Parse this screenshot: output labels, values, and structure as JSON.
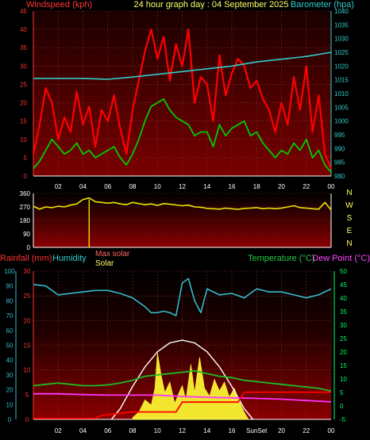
{
  "header": {
    "left_title": "Windspeed (kph)",
    "center_title": "24 hour graph day : 04 September 2025",
    "right_title": "Barometer (hpa)"
  },
  "colors": {
    "wind": "#ff0000",
    "wind_avg": "#00cc00",
    "barometer": "#33cccc",
    "direction": "#e8e800",
    "rain": "#ff0000",
    "humidity": "#33bbcc",
    "temperature": "#22bb22",
    "dewpoint": "#ff33ff",
    "solar": "#ffff33",
    "max_solar": "#ffffff",
    "axis_left_wind": "#ff3333",
    "axis_right_green": "#00ff66",
    "grid": "#7a2a2a"
  },
  "chart_data": [
    {
      "type": "line",
      "name": "wind-barometer",
      "title": "24 hour graph day : 04 September 2025",
      "ylabel": "Windspeed (kph)",
      "y2label": "Barometer (hpa)",
      "x_ticks": [
        "02",
        "04",
        "06",
        "08",
        "10",
        "12",
        "14",
        "16",
        "18",
        "20",
        "22",
        "00"
      ],
      "ylim": [
        0,
        45
      ],
      "y_ticks": [
        0,
        5,
        10,
        15,
        20,
        25,
        30,
        35,
        40,
        45
      ],
      "y2lim": [
        980,
        1040
      ],
      "y2_ticks": [
        980,
        985,
        990,
        995,
        1000,
        1005,
        1010,
        1015,
        1020,
        1025,
        1030,
        1035,
        1040
      ],
      "grid": true,
      "series": [
        {
          "key": "gust",
          "x": [
            0,
            0.5,
            1,
            1.5,
            2,
            2.5,
            3,
            3.5,
            4,
            4.5,
            5,
            5.5,
            6,
            6.5,
            7,
            7.5,
            8,
            8.5,
            9,
            9.5,
            10,
            10.5,
            11,
            11.5,
            12,
            12.5,
            13,
            13.5,
            14,
            14.5,
            15,
            15.5,
            16,
            16.5,
            17,
            17.5,
            18,
            18.5,
            19,
            19.5,
            20,
            20.5,
            21,
            21.5,
            22,
            22.5,
            23,
            23.5,
            24
          ],
          "values": [
            6,
            14,
            24,
            20,
            10,
            16,
            12,
            23,
            14,
            19,
            8,
            18,
            15,
            22,
            13,
            6,
            18,
            26,
            34,
            40,
            32,
            38,
            26,
            36,
            30,
            40,
            20,
            27,
            25,
            15,
            33,
            22,
            28,
            32,
            30,
            24,
            26,
            21,
            18,
            12,
            20,
            14,
            27,
            18,
            30,
            12,
            22,
            6,
            2
          ]
        },
        {
          "key": "avg",
          "x": [
            0,
            0.5,
            1,
            1.5,
            2,
            2.5,
            3,
            3.5,
            4,
            4.5,
            5,
            5.5,
            6,
            6.5,
            7,
            7.5,
            8,
            8.5,
            9,
            9.5,
            10,
            10.5,
            11,
            11.5,
            12,
            12.5,
            13,
            13.5,
            14,
            14.5,
            15,
            15.5,
            16,
            16.5,
            17,
            17.5,
            18,
            18.5,
            19,
            19.5,
            20,
            20.5,
            21,
            21.5,
            22,
            22.5,
            23,
            23.5,
            24
          ],
          "values": [
            2,
            4,
            7,
            10,
            8,
            6,
            7,
            9,
            6,
            7,
            5,
            6,
            7,
            8,
            5,
            3,
            6,
            10,
            15,
            19,
            20,
            21,
            18,
            16,
            15,
            14,
            11,
            12,
            12,
            8,
            14,
            11,
            13,
            14,
            15,
            11,
            12,
            9,
            7,
            5,
            7,
            6,
            9,
            7,
            10,
            5,
            7,
            3,
            1
          ]
        },
        {
          "key": "baro",
          "x": [
            0,
            2,
            4,
            6,
            8,
            10,
            12,
            14,
            16,
            18,
            20,
            22,
            24
          ],
          "values": [
            1015.5,
            1015.5,
            1015.5,
            1015.2,
            1016.0,
            1017.0,
            1018.0,
            1019.0,
            1020.0,
            1021.5,
            1022.5,
            1023.5,
            1025.0
          ]
        }
      ]
    },
    {
      "type": "line",
      "name": "wind-direction",
      "y_ticks": [
        0,
        90,
        180,
        270,
        360
      ],
      "ylim": [
        0,
        360
      ],
      "right_labels": [
        "N",
        "W",
        "S",
        "E",
        "N"
      ],
      "series": [
        {
          "key": "dir",
          "x": [
            0,
            0.5,
            1,
            1.5,
            2,
            2.5,
            3,
            3.5,
            4,
            4.5,
            5,
            5.5,
            6,
            6.5,
            7,
            7.5,
            8,
            8.5,
            9,
            9.5,
            10,
            10.5,
            11,
            11.5,
            12,
            12.5,
            13,
            13.5,
            14,
            14.5,
            15,
            15.5,
            16,
            16.5,
            17,
            17.5,
            18,
            18.5,
            19,
            19.5,
            20,
            20.5,
            21,
            21.5,
            22,
            22.5,
            23,
            23.5,
            24
          ],
          "values": [
            275,
            255,
            270,
            265,
            275,
            270,
            282,
            290,
            320,
            330,
            305,
            300,
            295,
            300,
            290,
            285,
            300,
            292,
            285,
            290,
            280,
            292,
            288,
            283,
            278,
            282,
            270,
            268,
            260,
            258,
            255,
            262,
            258,
            254,
            260,
            262,
            265,
            258,
            262,
            258,
            262,
            270,
            278,
            265,
            262,
            258,
            255,
            300,
            250
          ]
        }
      ]
    },
    {
      "type": "line",
      "name": "rain-humidity-temp",
      "legend": [
        "Rainfall (mm)",
        "Humidity",
        "Max solar",
        "Solar",
        "Temperature (°C)",
        "Dew Point (°C)"
      ],
      "x_ticks": [
        "02",
        "04",
        "06",
        "08",
        "10",
        "12",
        "14",
        "16",
        "SunSet",
        "20",
        "22",
        "00"
      ],
      "rain_ticks": [
        0,
        5,
        10,
        15,
        20,
        25,
        30
      ],
      "rain_lim": [
        0,
        30
      ],
      "hum_ticks": [
        0,
        10,
        20,
        30,
        40,
        50,
        60,
        70,
        80,
        90,
        100
      ],
      "hum_lim": [
        0,
        100
      ],
      "temp_ticks": [
        -5,
        0,
        5,
        10,
        15,
        20,
        25,
        30,
        35,
        40,
        45,
        50
      ],
      "temp_lim": [
        -5,
        50
      ],
      "grid": true,
      "series": [
        {
          "key": "humidity",
          "x": [
            0,
            1,
            2,
            3,
            4,
            5,
            6,
            7,
            8,
            9,
            9.5,
            10,
            10.5,
            11,
            11.5,
            12,
            12.5,
            13,
            13.5,
            14,
            15,
            16,
            17,
            18,
            19,
            20,
            21,
            22,
            23,
            24
          ],
          "values": [
            91,
            90,
            84,
            85,
            86,
            87,
            87,
            85,
            82,
            76,
            72,
            72,
            73,
            72,
            70,
            92,
            95,
            80,
            72,
            88,
            84,
            85,
            82,
            88,
            86,
            86,
            84,
            82,
            84,
            88
          ]
        },
        {
          "key": "temperature",
          "x": [
            0,
            1,
            2,
            3,
            4,
            5,
            6,
            7,
            8,
            9,
            10,
            11,
            12,
            13,
            14,
            15,
            16,
            17,
            18,
            19,
            20,
            21,
            22,
            23,
            24
          ],
          "values": [
            7.5,
            8,
            8.5,
            8,
            7.5,
            7.5,
            7.8,
            8.5,
            9.5,
            11,
            11.5,
            12,
            12.5,
            13,
            12,
            11,
            10.5,
            9.5,
            9,
            8.5,
            8,
            7.5,
            7,
            6.5,
            5.5
          ]
        },
        {
          "key": "dewpoint",
          "x": [
            0,
            2,
            4,
            6,
            8,
            10,
            12,
            14,
            16,
            18,
            20,
            22,
            24
          ],
          "values": [
            4.5,
            4.5,
            4.2,
            4.0,
            4.0,
            4.0,
            3.5,
            3.2,
            3.0,
            2.8,
            2.5,
            2.0,
            1.5
          ]
        },
        {
          "key": "rain",
          "x": [
            0,
            5,
            5.5,
            8,
            11.5,
            12,
            16.5,
            17,
            24
          ],
          "values": [
            0.2,
            0.2,
            0.8,
            1.5,
            1.5,
            3.5,
            3.5,
            5.5,
            5.5
          ]
        },
        {
          "key": "max_solar",
          "x": [
            6.3,
            7,
            8,
            9,
            10,
            11,
            12,
            13,
            14,
            15,
            16,
            17,
            17.7
          ],
          "values": [
            0,
            120,
            370,
            590,
            760,
            860,
            890,
            860,
            760,
            590,
            370,
            120,
            0
          ]
        },
        {
          "key": "solar",
          "x": [
            8,
            8.5,
            9,
            9.5,
            9.8,
            10,
            10.3,
            10.6,
            11,
            11.4,
            11.8,
            12,
            12.3,
            12.7,
            13,
            13.4,
            13.8,
            14.2,
            14.6,
            15,
            15.4,
            15.8,
            16.2,
            16.6,
            17,
            17.3
          ],
          "values": [
            20,
            80,
            220,
            160,
            350,
            750,
            500,
            300,
            420,
            180,
            320,
            380,
            220,
            620,
            300,
            700,
            350,
            260,
            450,
            320,
            420,
            250,
            350,
            200,
            80,
            10
          ]
        }
      ]
    }
  ],
  "footer": {
    "x_ticks": [
      "02",
      "04",
      "06",
      "08",
      "10",
      "12",
      "14",
      "16",
      "SunSet",
      "20",
      "22",
      "00"
    ]
  }
}
